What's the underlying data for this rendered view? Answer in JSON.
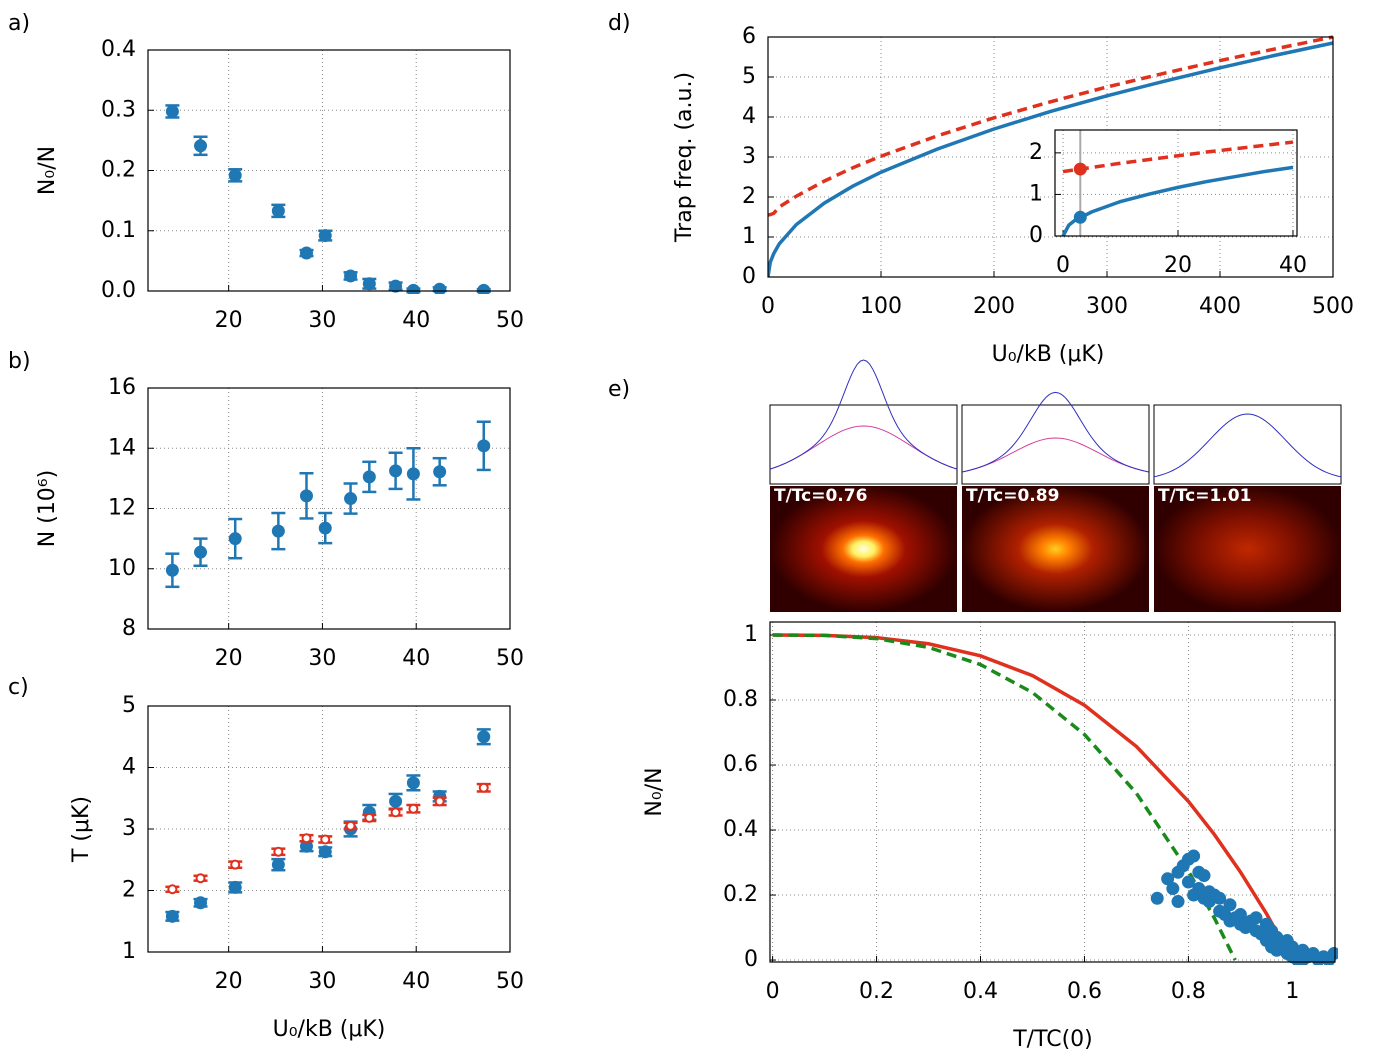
{
  "images": [
    {
      "label": "T/Tc=0.76"
    },
    {
      "label": "T/Tc=0.89"
    },
    {
      "label": "T/Tc=1.01"
    }
  ],
  "chart_data": [
    {
      "type": "errorbar",
      "label": "a)",
      "ylabel": "N₀/N",
      "x": [
        14,
        17,
        20.7,
        25.3,
        28.3,
        30.3,
        33,
        35,
        37.8,
        39.7,
        42.5,
        47.2
      ],
      "series": [
        {
          "color": "#1f77b4",
          "marker": "filled",
          "values": [
            0.298,
            0.241,
            0.192,
            0.133,
            0.063,
            0.092,
            0.025,
            0.012,
            0.008,
            0.001,
            0.003,
            0.001
          ],
          "errors": [
            0.01,
            0.015,
            0.01,
            0.01,
            0.005,
            0.008,
            0.006,
            0.008,
            0.006,
            0.003,
            0.003,
            0.002
          ]
        }
      ],
      "xlim": [
        11.4,
        50
      ],
      "ylim": [
        0,
        0.4
      ],
      "xticks": [
        20,
        30,
        40,
        50
      ],
      "yticks": [
        {
          "value": 0,
          "label": "0.0"
        },
        0.1,
        0.2,
        0.3,
        0.4
      ],
      "grid": true
    },
    {
      "type": "errorbar",
      "label": "b)",
      "ylabel": "N (10⁶)",
      "x": [
        14,
        17,
        20.7,
        25.3,
        28.3,
        30.3,
        33,
        35,
        37.8,
        39.7,
        42.5,
        47.2
      ],
      "series": [
        {
          "color": "#1f77b4",
          "marker": "filled",
          "values": [
            9.95,
            10.55,
            11.0,
            11.25,
            12.42,
            11.35,
            12.33,
            13.05,
            13.25,
            13.15,
            13.22,
            14.08
          ],
          "errors": [
            0.55,
            0.45,
            0.65,
            0.6,
            0.75,
            0.5,
            0.5,
            0.5,
            0.6,
            0.85,
            0.45,
            0.8
          ]
        }
      ],
      "xlim": [
        11.4,
        50
      ],
      "ylim": [
        8,
        16
      ],
      "xticks": [
        20,
        30,
        40,
        50
      ],
      "yticks": [
        8,
        10,
        12,
        14,
        16
      ],
      "grid": true
    },
    {
      "type": "errorbar",
      "label": "c)",
      "ylabel": "T (μK)",
      "xlabel": "U₀/kB (μK)",
      "x": [
        14,
        17,
        20.7,
        25.3,
        28.3,
        30.3,
        33,
        35,
        37.8,
        39.7,
        42.5,
        47.2
      ],
      "series": [
        {
          "color": "#1f77b4",
          "marker": "filled",
          "values": [
            1.58,
            1.8,
            2.05,
            2.42,
            2.72,
            2.63,
            3.0,
            3.27,
            3.45,
            3.75,
            3.53,
            4.5
          ],
          "errors": [
            0.07,
            0.06,
            0.08,
            0.09,
            0.08,
            0.07,
            0.12,
            0.12,
            0.12,
            0.12,
            0.08,
            0.12
          ]
        },
        {
          "color": "#e0301e",
          "marker": "open",
          "values": [
            2.02,
            2.2,
            2.42,
            2.63,
            2.85,
            2.83,
            3.05,
            3.18,
            3.27,
            3.33,
            3.45,
            3.67
          ],
          "errors": [
            0.04,
            0.04,
            0.05,
            0.05,
            0.05,
            0.05,
            0.05,
            0.05,
            0.05,
            0.06,
            0.06,
            0.06
          ]
        }
      ],
      "xlim": [
        11.4,
        50
      ],
      "ylim": [
        1,
        5
      ],
      "xticks": [
        20,
        30,
        40,
        50
      ],
      "yticks": [
        1,
        2,
        3,
        4,
        5
      ],
      "grid": true
    },
    {
      "type": "line",
      "label": "d)",
      "ylabel": "Trap freq. (a.u.)",
      "xlabel": "U₀/kB (μK)",
      "series": [
        {
          "color": "#e0301e",
          "dash": true,
          "kind": "line",
          "x": [
            0,
            2,
            5,
            10,
            25,
            50,
            75,
            100,
            150,
            200,
            250,
            300,
            350,
            400,
            450,
            500
          ],
          "values": [
            1.55,
            1.56,
            1.59,
            1.75,
            2.02,
            2.4,
            2.73,
            3.02,
            3.53,
            3.98,
            4.38,
            4.75,
            5.09,
            5.41,
            5.71,
            6.0
          ]
        },
        {
          "color": "#1f77b4",
          "kind": "line",
          "x": [
            0,
            2,
            5,
            10,
            25,
            50,
            75,
            100,
            150,
            200,
            250,
            300,
            350,
            400,
            450,
            500
          ],
          "values": [
            0,
            0.37,
            0.58,
            0.83,
            1.31,
            1.85,
            2.27,
            2.62,
            3.2,
            3.7,
            4.14,
            4.53,
            4.89,
            5.23,
            5.55,
            5.85
          ]
        }
      ],
      "xlim": [
        0,
        500
      ],
      "ylim": [
        0,
        6
      ],
      "xticks": [
        0,
        100,
        200,
        300,
        400,
        500
      ],
      "yticks": [
        0,
        1,
        2,
        3,
        4,
        5,
        6
      ],
      "grid": true
    },
    {
      "type": "line",
      "series": [
        {
          "color": "#e0301e",
          "dash": true,
          "kind": "line",
          "x": [
            0,
            1,
            2,
            5,
            10,
            15,
            20,
            25,
            30,
            35,
            40
          ],
          "values": [
            1.55,
            1.57,
            1.59,
            1.65,
            1.75,
            1.84,
            1.93,
            2.02,
            2.1,
            2.18,
            2.26
          ]
        },
        {
          "color": "#1f77b4",
          "kind": "line",
          "x": [
            0,
            1,
            2,
            5,
            10,
            15,
            20,
            25,
            30,
            35,
            40
          ],
          "values": [
            0,
            0.26,
            0.37,
            0.58,
            0.83,
            1.01,
            1.17,
            1.31,
            1.43,
            1.55,
            1.65
          ]
        },
        {
          "color": "#e0301e",
          "kind": "points",
          "x": [
            3
          ],
          "values": [
            1.61
          ]
        },
        {
          "color": "#1f77b4",
          "kind": "points",
          "x": [
            3
          ],
          "values": [
            0.45
          ]
        }
      ],
      "xlim": [
        -1.4,
        40.7
      ],
      "ylim": [
        0,
        2.55
      ],
      "xticks": [
        0,
        20,
        40
      ],
      "yticks": [
        0,
        1,
        2
      ],
      "grid": true
    },
    {
      "type": "line",
      "label": "e)",
      "ylabel": "N₀/N",
      "xlabel": "T/TC(0)",
      "series": [
        {
          "color": "#e0301e",
          "kind": "line",
          "x": [
            0,
            0.1,
            0.2,
            0.3,
            0.4,
            0.5,
            0.6,
            0.7,
            0.8,
            0.85,
            0.9,
            0.95,
            1.0
          ],
          "values": [
            1,
            0.999,
            0.992,
            0.973,
            0.936,
            0.875,
            0.784,
            0.657,
            0.488,
            0.386,
            0.271,
            0.143,
            0
          ]
        },
        {
          "color": "#1a8a1a",
          "dash": true,
          "kind": "line",
          "x": [
            0,
            0.1,
            0.2,
            0.3,
            0.4,
            0.5,
            0.6,
            0.7,
            0.8,
            0.85,
            0.89
          ],
          "values": [
            1,
            0.999,
            0.989,
            0.962,
            0.909,
            0.823,
            0.694,
            0.513,
            0.274,
            0.129,
            0
          ]
        },
        {
          "color": "#1f77b4",
          "kind": "points",
          "x": [
            0.76,
            0.77,
            0.78,
            0.78,
            0.79,
            0.8,
            0.8,
            0.81,
            0.81,
            0.82,
            0.82,
            0.83,
            0.83,
            0.84,
            0.84,
            0.85,
            0.86,
            0.86,
            0.87,
            0.88,
            0.89,
            0.9,
            0.9,
            0.91,
            0.92,
            0.93,
            0.93,
            0.94,
            0.95,
            0.95,
            0.96,
            0.96,
            0.97,
            0.97,
            0.98,
            0.99,
            1.0,
            1.0,
            1.01,
            1.02,
            1.03,
            1.04,
            1.05,
            1.06,
            1.07,
            1.08,
            0.74,
            0.88,
            0.99,
            1.02
          ],
          "values": [
            0.25,
            0.22,
            0.27,
            0.18,
            0.29,
            0.31,
            0.24,
            0.32,
            0.2,
            0.27,
            0.22,
            0.19,
            0.26,
            0.21,
            0.18,
            0.2,
            0.15,
            0.19,
            0.14,
            0.12,
            0.13,
            0.14,
            0.11,
            0.1,
            0.12,
            0.09,
            0.13,
            0.08,
            0.11,
            0.06,
            0.09,
            0.04,
            0.07,
            0.03,
            0.05,
            0.02,
            0.01,
            0.04,
            0,
            0.03,
            0.01,
            0.02,
            0,
            0.01,
            0,
            0.02,
            0.19,
            0.17,
            0.06,
            0
          ]
        }
      ],
      "xlim": [
        -0.005,
        1.082
      ],
      "ylim": [
        -0.006,
        1.04
      ],
      "xticks": [
        0,
        0.2,
        0.4,
        0.6,
        0.8,
        1
      ],
      "yticks": [
        0,
        0.2,
        0.4,
        0.6,
        0.8,
        1
      ],
      "grid": true
    }
  ]
}
